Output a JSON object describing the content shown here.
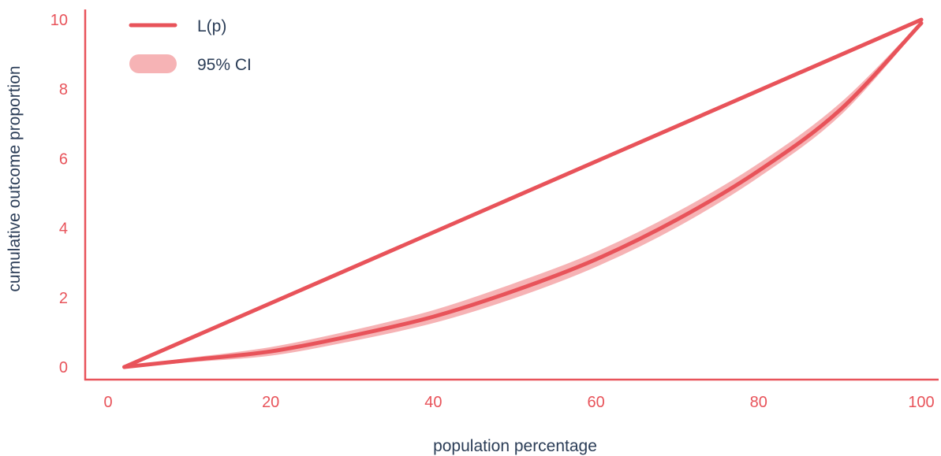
{
  "chart_data": {
    "type": "line",
    "title": "",
    "xlabel": "population percentage",
    "ylabel": "cumulative outcome proportion",
    "xlim": [
      0,
      100
    ],
    "ylim": [
      0,
      10
    ],
    "x_ticks": [
      0,
      20,
      40,
      60,
      80,
      100
    ],
    "y_ticks": [
      0,
      2,
      4,
      6,
      8,
      10
    ],
    "grid": false,
    "legend_position": "top-left",
    "colors": {
      "line": "#e8535a",
      "band": "#f6b3b5",
      "axis": "#e8535a",
      "tick_text": "#e8535a",
      "label_text": "#2b3d57"
    },
    "series": [
      {
        "name": "L(p)",
        "kind": "line",
        "x": [
          2,
          10,
          20,
          30,
          40,
          50,
          60,
          70,
          80,
          90,
          100
        ],
        "y": [
          0,
          0.2,
          0.45,
          0.9,
          1.45,
          2.2,
          3.1,
          4.25,
          5.65,
          7.4,
          9.9
        ]
      },
      {
        "name": "95% CI",
        "kind": "band",
        "x": [
          2,
          10,
          20,
          30,
          40,
          50,
          60,
          70,
          80,
          90,
          100
        ],
        "lower": [
          0,
          0.17,
          0.36,
          0.78,
          1.3,
          2.02,
          2.92,
          4.07,
          5.5,
          7.28,
          9.9
        ],
        "upper": [
          0,
          0.23,
          0.54,
          1.02,
          1.6,
          2.38,
          3.28,
          4.43,
          5.82,
          7.55,
          9.9
        ]
      },
      {
        "name": "",
        "kind": "line",
        "x": [
          2,
          100
        ],
        "y": [
          0,
          10
        ]
      }
    ]
  }
}
